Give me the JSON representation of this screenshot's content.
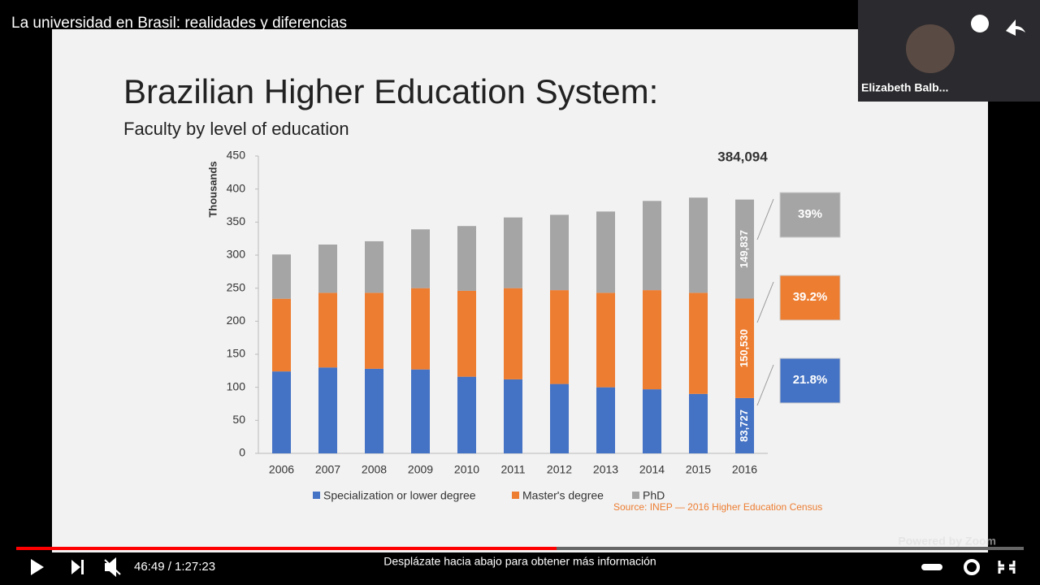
{
  "video": {
    "title": "La universidad en Brasil: realidades y diferencias",
    "participant": "Elizabeth Balb...",
    "watermark": "Powered by Zoom",
    "time": "46:49 / 1:27:23",
    "hint": "Desplázate hacia abajo para obtener más información"
  },
  "chart_data": {
    "type": "stacked-bar",
    "title": "Brazilian Higher Education System:",
    "subtitle": "Faculty by level of education",
    "y_label": "Thousands",
    "total_label": "384,094",
    "source": "Source: INEP — 2016 Higher Education Census",
    "categories": [
      "2006",
      "2007",
      "2008",
      "2009",
      "2010",
      "2011",
      "2012",
      "2013",
      "2014",
      "2015",
      "2016"
    ],
    "series": [
      {
        "name": "Specialization or lower degree",
        "color": "#4472c4",
        "share_label": "21.8%",
        "values": [
          124,
          130,
          128,
          127,
          116,
          112,
          105,
          100,
          97,
          90,
          83.727
        ],
        "value_labels": [
          null,
          null,
          null,
          null,
          null,
          null,
          null,
          null,
          null,
          null,
          "83,727"
        ]
      },
      {
        "name": "Master's degree",
        "color": "#ed7d31",
        "share_label": "39.2%",
        "values": [
          110,
          113,
          115,
          123,
          130,
          138,
          142,
          143,
          150,
          153,
          150.53
        ],
        "value_labels": [
          null,
          null,
          null,
          null,
          null,
          null,
          null,
          null,
          null,
          null,
          "150,530"
        ]
      },
      {
        "name": "PhD",
        "color": "#a5a5a5",
        "share_label": "39%",
        "values": [
          67,
          73,
          78,
          89,
          98,
          107,
          114,
          123,
          135,
          144,
          149.837
        ],
        "value_labels": [
          null,
          null,
          null,
          null,
          null,
          null,
          null,
          null,
          null,
          null,
          "149,837"
        ]
      }
    ],
    "ylim": [
      0,
      450
    ],
    "yticks": [
      0,
      50,
      100,
      150,
      200,
      250,
      300,
      350,
      400,
      450
    ],
    "grid": false
  }
}
